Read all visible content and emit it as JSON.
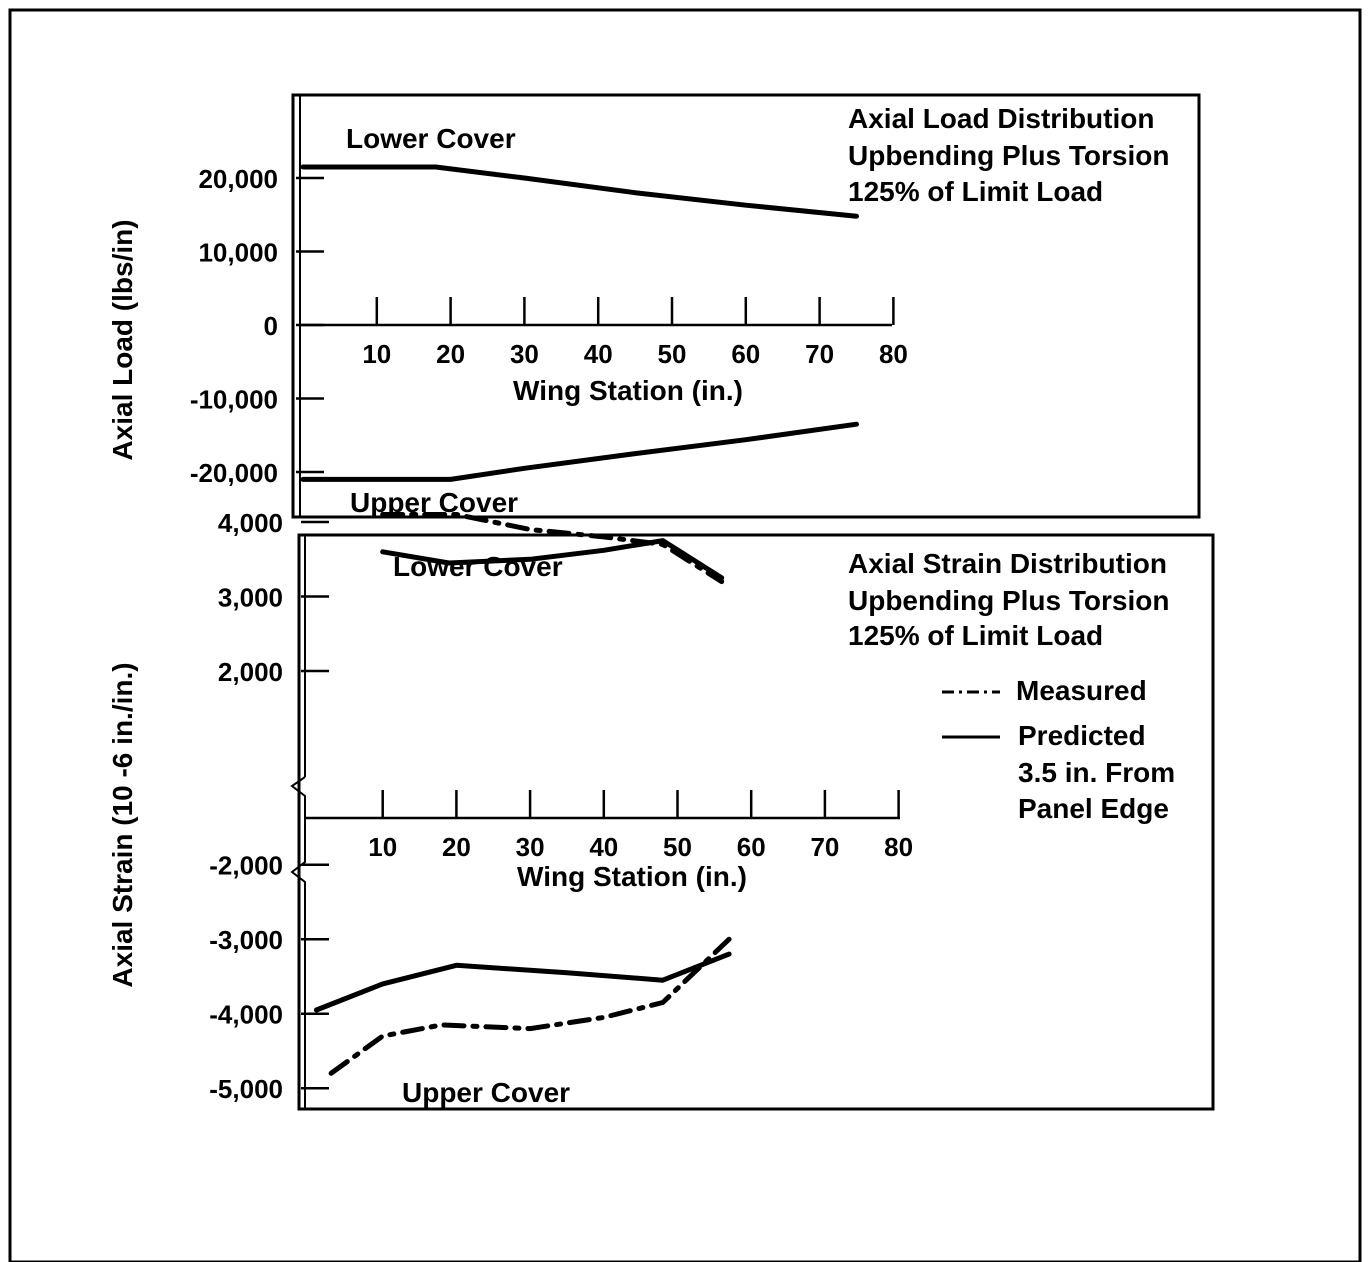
{
  "chart_data": [
    {
      "type": "line",
      "title_lines": [
        "Axial Load Distribution",
        "Upbending Plus Torsion",
        "125% of Limit Load"
      ],
      "xlabel": "Wing Station (in.)",
      "ylabel": "Axial Load (lbs/in)",
      "xlim": [
        0,
        80
      ],
      "ylim": [
        -25000,
        30000
      ],
      "x_ticks": [
        10,
        20,
        30,
        40,
        50,
        60,
        70,
        80
      ],
      "x_tick_labels": [
        "10",
        "20",
        "30",
        "40",
        "50",
        "60",
        "70",
        "80"
      ],
      "y_ticks": [
        20000,
        10000,
        0,
        -10000,
        -20000
      ],
      "y_tick_labels": [
        "20,000",
        "10,000",
        "0",
        "-10,000",
        "-20,000"
      ],
      "annotations": [
        "Lower Cover",
        "Upper Cover"
      ],
      "series": [
        {
          "x": [
            0,
            18,
            30,
            45,
            60,
            75
          ],
          "y": [
            21500,
            21500,
            20000,
            18000,
            16300,
            14800
          ]
        },
        {
          "x": [
            0,
            20,
            30,
            45,
            60,
            75
          ],
          "y": [
            -21000,
            -21000,
            -19500,
            -17500,
            -15600,
            -13500
          ]
        }
      ]
    },
    {
      "type": "line",
      "title_lines": [
        "Axial Strain Distribution",
        "Upbending Plus Torsion",
        "125% of Limit Load"
      ],
      "xlabel": "Wing Station (in.)",
      "ylabel": "Axial Strain (10 -6 in./in.)",
      "xlim": [
        0,
        80
      ],
      "y_axis_broken": true,
      "x_ticks": [
        10,
        20,
        30,
        40,
        50,
        60,
        70,
        80
      ],
      "x_tick_labels": [
        "10",
        "20",
        "30",
        "40",
        "50",
        "60",
        "70",
        "80"
      ],
      "y_ticks": [
        4000,
        3000,
        2000,
        -2000,
        -3000,
        -4000,
        -5000
      ],
      "y_tick_labels": [
        "4,000",
        "3,000",
        "2,000",
        "-2,000",
        "-3,000",
        "-4,000",
        "-5,000"
      ],
      "annotations": [
        "Lower Cover",
        "Upper Cover"
      ],
      "legend": {
        "position": "right",
        "entries": [
          {
            "label_lines": [
              "Measured"
            ],
            "style": "dash-dot"
          },
          {
            "label_lines": [
              "Predicted",
              "3.5 in. From",
              "Panel Edge"
            ],
            "style": "solid"
          }
        ]
      },
      "series": [
        {
          "name": "Measured",
          "style": "dash-dot",
          "x": [
            10,
            20,
            30,
            40,
            48,
            56
          ],
          "y": [
            4100,
            4100,
            3900,
            3800,
            3700,
            3200
          ]
        },
        {
          "name": "Predicted 3.5 in. From Panel Edge",
          "style": "solid",
          "x": [
            10,
            19,
            30,
            40,
            48,
            56
          ],
          "y": [
            3600,
            3450,
            3500,
            3620,
            3750,
            3250
          ]
        },
        {
          "name": "Measured",
          "style": "dash-dot",
          "x": [
            3,
            10,
            18,
            30,
            40,
            48,
            57
          ],
          "y": [
            -4800,
            -4300,
            -4150,
            -4200,
            -4050,
            -3850,
            -3000
          ]
        },
        {
          "name": "Predicted 3.5 in. From Panel Edge",
          "style": "solid",
          "x": [
            1,
            10,
            20,
            35,
            48,
            57
          ],
          "y": [
            -3950,
            -3600,
            -3350,
            -3450,
            -3550,
            -3200
          ]
        }
      ]
    }
  ]
}
